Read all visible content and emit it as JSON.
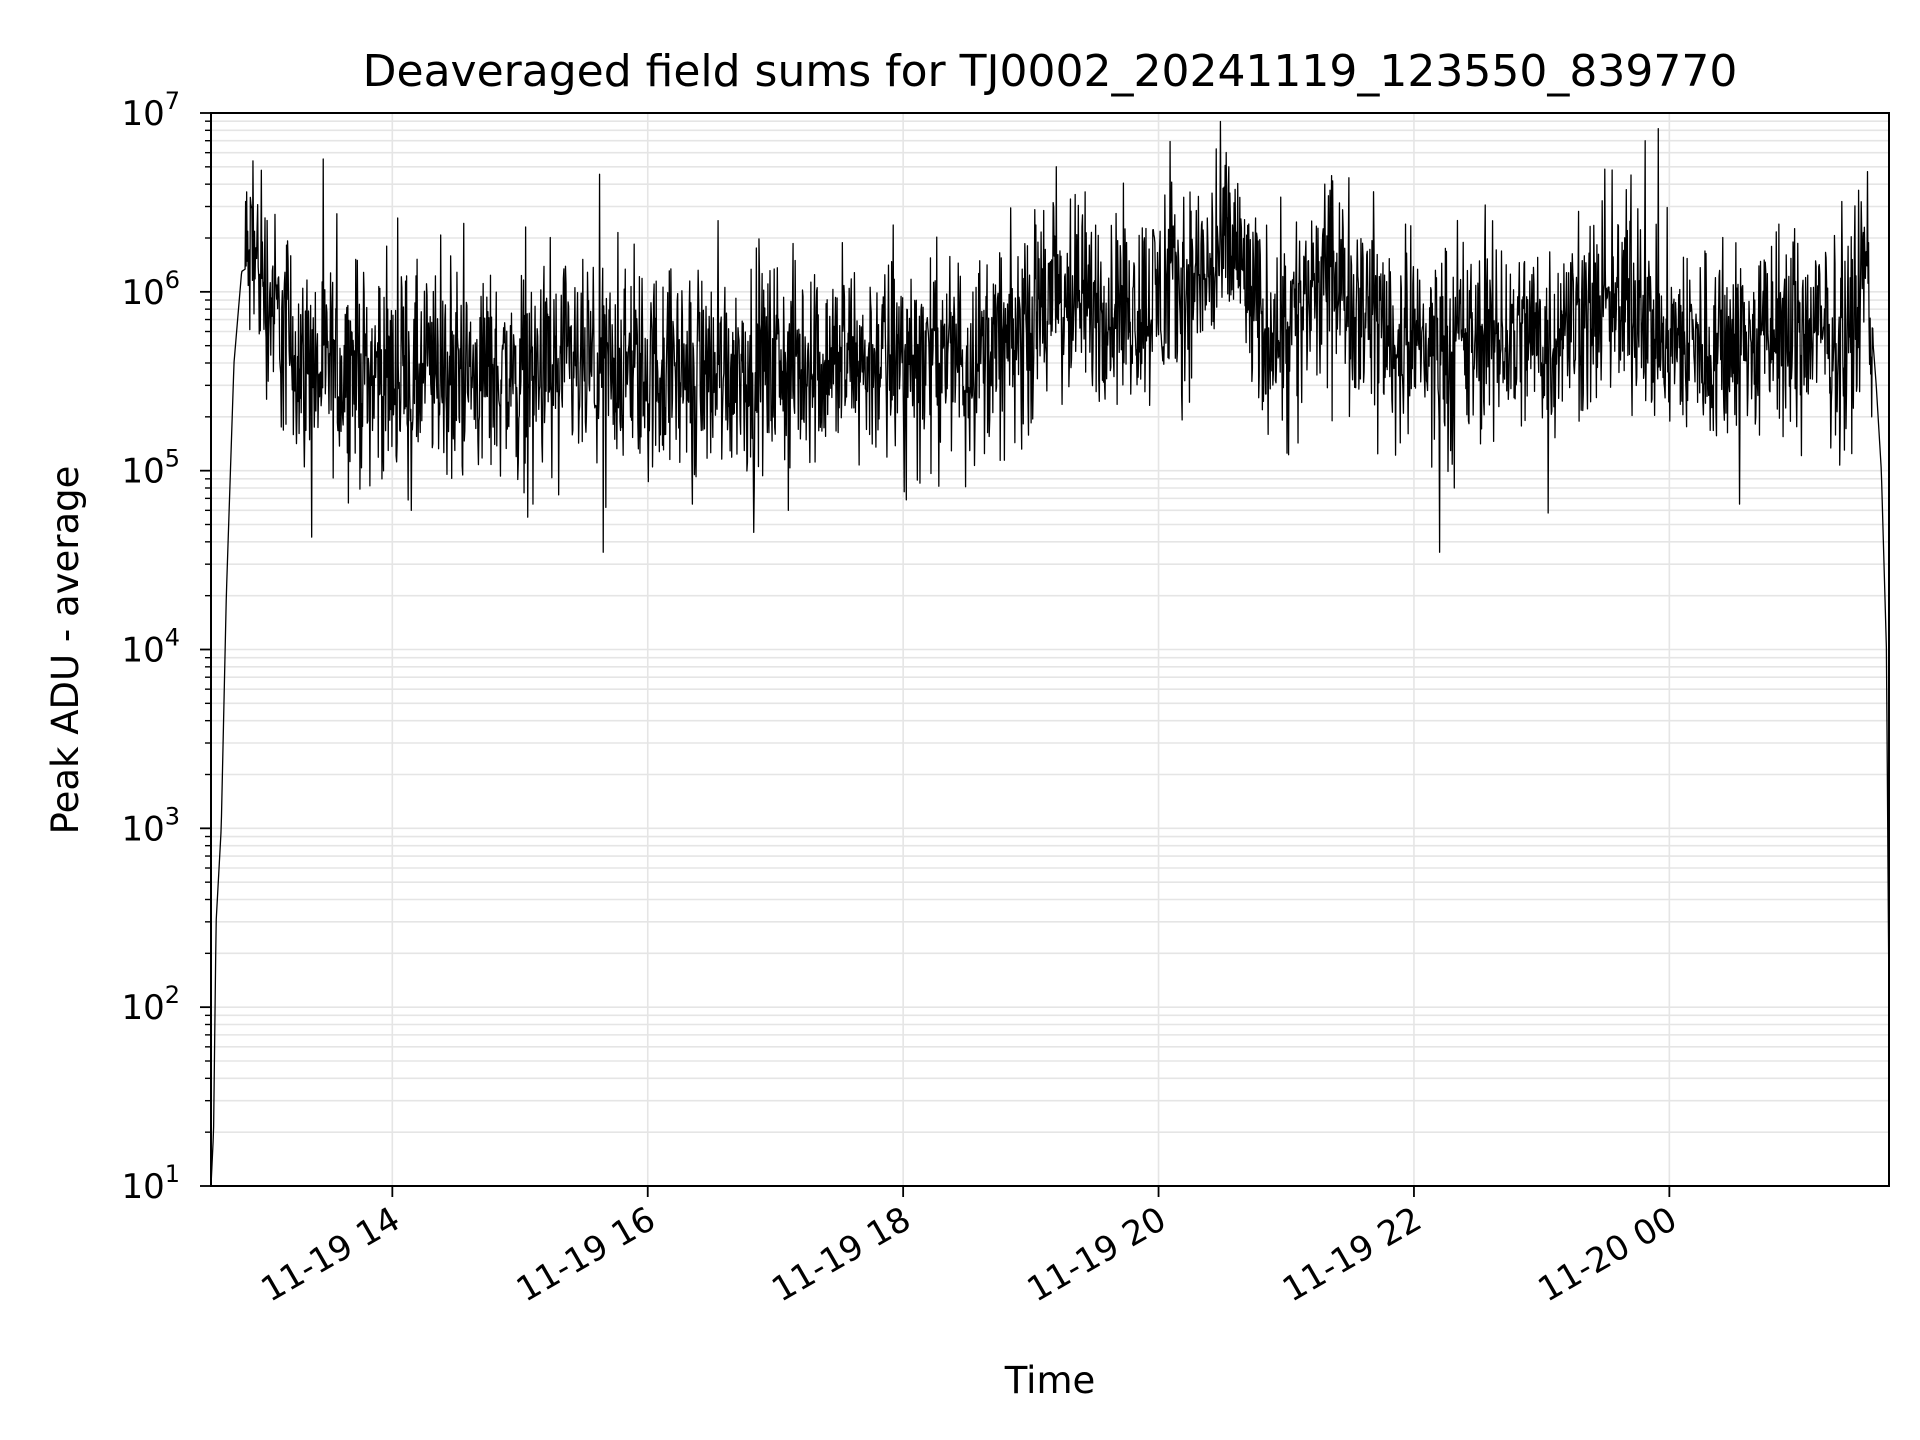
{
  "chart_data": {
    "type": "line",
    "title": "Deaveraged field sums for TJ0002_20241119_123550_839770",
    "xlabel": "Time",
    "ylabel": "Peak ADU - average",
    "x_range": [
      "11-19 12:35",
      "11-20 01:45"
    ],
    "xlim_hours_since_11_19_00": [
      12.58,
      25.72
    ],
    "ylim": [
      10,
      10000000
    ],
    "yscale": "log",
    "grid": "major and minor",
    "line_color": "#000000",
    "grid_color": "#e5e5e5",
    "x_ticks": [
      {
        "label": "11-19 14",
        "hour": 14
      },
      {
        "label": "11-19 16",
        "hour": 16
      },
      {
        "label": "11-19 18",
        "hour": 18
      },
      {
        "label": "11-19 20",
        "hour": 20
      },
      {
        "label": "11-19 22",
        "hour": 22
      },
      {
        "label": "11-20 00",
        "hour": 24
      }
    ],
    "y_ticks": [
      {
        "base": "10",
        "exp": "1",
        "value": 10
      },
      {
        "base": "10",
        "exp": "2",
        "value": 100
      },
      {
        "base": "10",
        "exp": "3",
        "value": 1000
      },
      {
        "base": "10",
        "exp": "4",
        "value": 10000
      },
      {
        "base": "10",
        "exp": "5",
        "value": 100000
      },
      {
        "base": "10",
        "exp": "6",
        "value": 1000000
      },
      {
        "base": "10",
        "exp": "7",
        "value": 10000000
      }
    ],
    "series": [
      {
        "anchors": [
          {
            "hour": 12.58,
            "value": 10
          },
          {
            "hour": 12.6,
            "value": 20
          },
          {
            "hour": 12.62,
            "value": 300
          },
          {
            "hour": 12.66,
            "value": 1000
          },
          {
            "hour": 12.7,
            "value": 20000
          },
          {
            "hour": 12.76,
            "value": 400000
          },
          {
            "hour": 12.82,
            "value": 1300000
          },
          {
            "hour": 12.95,
            "value": 1500000
          },
          {
            "hour": 13.1,
            "value": 700000
          },
          {
            "hour": 13.3,
            "value": 380000
          },
          {
            "hour": 14.0,
            "value": 340000
          },
          {
            "hour": 15.0,
            "value": 350000
          },
          {
            "hour": 16.0,
            "value": 360000
          },
          {
            "hour": 17.0,
            "value": 380000
          },
          {
            "hour": 18.0,
            "value": 430000
          },
          {
            "hour": 18.8,
            "value": 480000
          },
          {
            "hour": 19.2,
            "value": 900000
          },
          {
            "hour": 19.8,
            "value": 800000
          },
          {
            "hour": 20.4,
            "value": 1300000
          },
          {
            "hour": 20.6,
            "value": 1800000
          },
          {
            "hour": 20.8,
            "value": 600000
          },
          {
            "hour": 21.4,
            "value": 1100000
          },
          {
            "hour": 22.0,
            "value": 500000
          },
          {
            "hour": 22.6,
            "value": 520000
          },
          {
            "hour": 23.2,
            "value": 650000
          },
          {
            "hour": 23.7,
            "value": 900000
          },
          {
            "hour": 24.0,
            "value": 500000
          },
          {
            "hour": 24.6,
            "value": 480000
          },
          {
            "hour": 25.0,
            "value": 600000
          },
          {
            "hour": 25.4,
            "value": 550000
          },
          {
            "hour": 25.55,
            "value": 1400000
          },
          {
            "hour": 25.62,
            "value": 300000
          },
          {
            "hour": 25.66,
            "value": 100000
          },
          {
            "hour": 25.7,
            "value": 10000
          },
          {
            "hour": 25.72,
            "value": 100
          }
        ],
        "spikes": [
          {
            "hour": 12.85,
            "value": 3200000
          },
          {
            "hour": 12.9,
            "value": 3000000
          },
          {
            "hour": 13.95,
            "value": 380000
          },
          {
            "hour": 14.15,
            "value": 60000
          },
          {
            "hour": 15.1,
            "value": 65000
          },
          {
            "hour": 15.65,
            "value": 35000
          },
          {
            "hour": 16.35,
            "value": 65000
          },
          {
            "hour": 17.1,
            "value": 60000
          },
          {
            "hour": 19.2,
            "value": 5000000
          },
          {
            "hour": 20.45,
            "value": 6300000
          },
          {
            "hour": 20.55,
            "value": 5000000
          },
          {
            "hour": 21.3,
            "value": 4000000
          },
          {
            "hour": 22.2,
            "value": 35000
          },
          {
            "hour": 23.05,
            "value": 58000
          },
          {
            "hour": 23.55,
            "value": 4800000
          },
          {
            "hour": 23.7,
            "value": 4500000
          },
          {
            "hour": 24.55,
            "value": 65000
          },
          {
            "hour": 25.35,
            "value": 3200000
          },
          {
            "hour": 25.55,
            "value": 4700000
          }
        ]
      }
    ]
  }
}
